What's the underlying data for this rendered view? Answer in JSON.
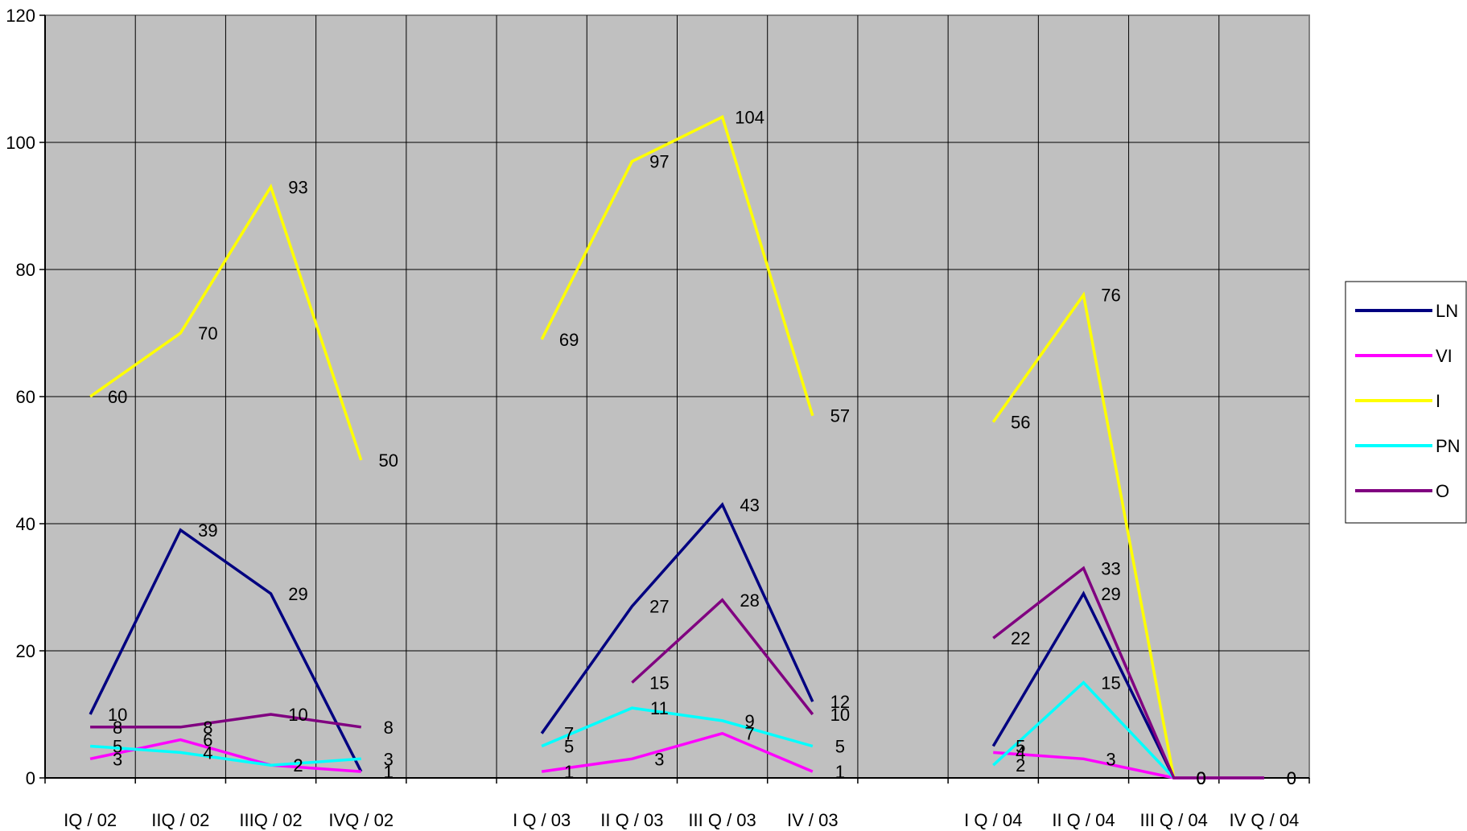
{
  "chart_data": {
    "type": "line",
    "categories": [
      "IQ / 02",
      "IIQ / 02",
      "IIIQ / 02",
      "IVQ / 02",
      "",
      "I Q / 03",
      "II Q / 03",
      "III Q / 03",
      "IV / 03",
      "",
      "I Q / 04",
      "II Q / 04",
      "III Q / 04",
      "IV Q / 04"
    ],
    "ylim": [
      0,
      120
    ],
    "yticks": [
      0,
      20,
      40,
      60,
      80,
      100,
      120
    ],
    "grid": true,
    "legend_position": "right",
    "plot_background": "#c0c0c0",
    "series": [
      {
        "name": "LN",
        "color": "#000080",
        "values": [
          10,
          39,
          29,
          1,
          null,
          7,
          27,
          43,
          12,
          null,
          5,
          29,
          0,
          null
        ]
      },
      {
        "name": "VI",
        "color": "#ff00ff",
        "values": [
          3,
          6,
          2,
          1,
          null,
          1,
          3,
          7,
          1,
          null,
          4,
          3,
          0,
          0
        ]
      },
      {
        "name": "I",
        "color": "#ffff00",
        "values": [
          60,
          70,
          93,
          50,
          null,
          69,
          97,
          104,
          57,
          null,
          56,
          76,
          0,
          null
        ]
      },
      {
        "name": "PN",
        "color": "#00ffff",
        "values": [
          5,
          4,
          2,
          3,
          null,
          5,
          11,
          9,
          5,
          null,
          2,
          15,
          0,
          null
        ]
      },
      {
        "name": "O",
        "color": "#800080",
        "values": [
          8,
          8,
          10,
          8,
          null,
          null,
          15,
          28,
          10,
          null,
          22,
          33,
          0,
          0
        ]
      }
    ]
  }
}
